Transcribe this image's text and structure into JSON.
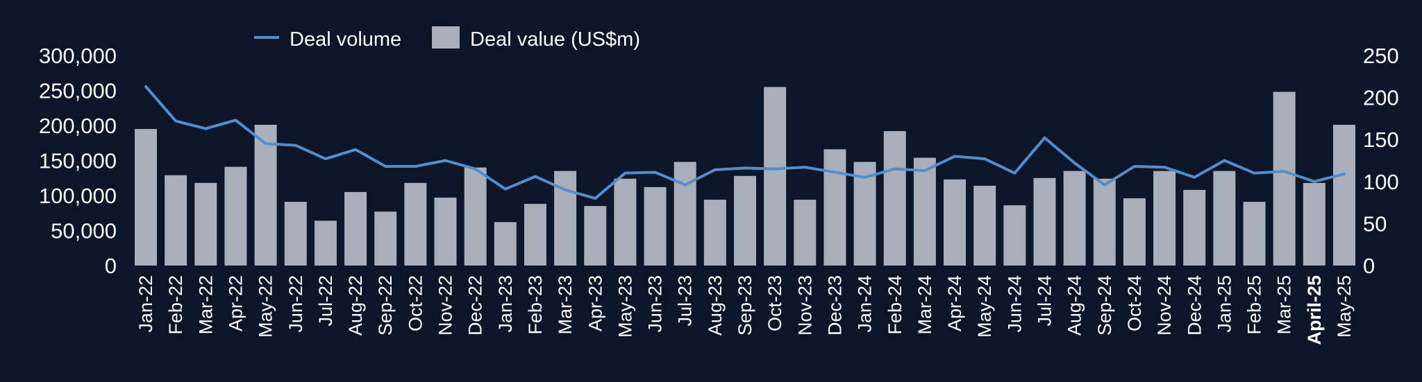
{
  "chart_data": {
    "type": "bar",
    "legend": {
      "position": "top",
      "items": [
        {
          "label": "Deal volume",
          "symbol": "line"
        },
        {
          "label": "Deal value (US$m)",
          "symbol": "box"
        }
      ]
    },
    "categories": [
      "Jan-22",
      "Feb-22",
      "Mar-22",
      "Apr-22",
      "May-22",
      "Jun-22",
      "Jul-22",
      "Aug-22",
      "Sep-22",
      "Oct-22",
      "Nov-22",
      "Dec-22",
      "Jan-23",
      "Feb-23",
      "Mar-23",
      "Apr-23",
      "May-23",
      "Jun-23",
      "Jul-23",
      "Aug-23",
      "Sep-23",
      "Oct-23",
      "Nov-23",
      "Dec-23",
      "Jan-24",
      "Feb-24",
      "Mar-24",
      "Apr-24",
      "May-24",
      "Jun-24",
      "Jul-24",
      "Aug-24",
      "Sep-24",
      "Oct-24",
      "Nov-24",
      "Dec-24",
      "Jan-25",
      "Feb-25",
      "Mar-25",
      "April-25",
      "May-25"
    ],
    "bold_categories": [
      "April-25"
    ],
    "series": [
      {
        "name": "Deal value (US$m)",
        "type": "bar",
        "axis": "left",
        "values": [
          195000,
          129000,
          118000,
          141000,
          201000,
          91000,
          64000,
          105000,
          77000,
          118000,
          97000,
          140000,
          62000,
          88000,
          135000,
          85000,
          124000,
          112000,
          148000,
          94000,
          128000,
          255000,
          94000,
          166000,
          148000,
          192000,
          154000,
          123000,
          114000,
          86000,
          125000,
          135000,
          124000,
          96000,
          135000,
          108000,
          135000,
          91000,
          248000,
          118000,
          201000
        ]
      },
      {
        "name": "Deal volume",
        "type": "line",
        "axis": "right",
        "values": [
          213,
          172,
          163,
          173,
          145,
          143,
          127,
          138,
          118,
          118,
          125,
          115,
          91,
          106,
          90,
          80,
          110,
          111,
          96,
          114,
          116,
          115,
          117,
          111,
          105,
          115,
          113,
          130,
          127,
          110,
          152,
          122,
          96,
          118,
          117,
          105,
          125,
          110,
          112,
          100,
          109
        ]
      }
    ],
    "y_left": {
      "min": 0,
      "max": 300000,
      "ticks": [
        "0",
        "50,000",
        "100,000",
        "150,000",
        "200,000",
        "250,000",
        "300,000"
      ]
    },
    "y_right": {
      "min": 0,
      "max": 250,
      "ticks": [
        "0",
        "50",
        "100",
        "150",
        "200",
        "250"
      ]
    },
    "grid": false,
    "colors": {
      "background": "#0b1628",
      "bar": "#a9afb8",
      "line": "#4f8fd1",
      "text": "#ffffff"
    }
  }
}
